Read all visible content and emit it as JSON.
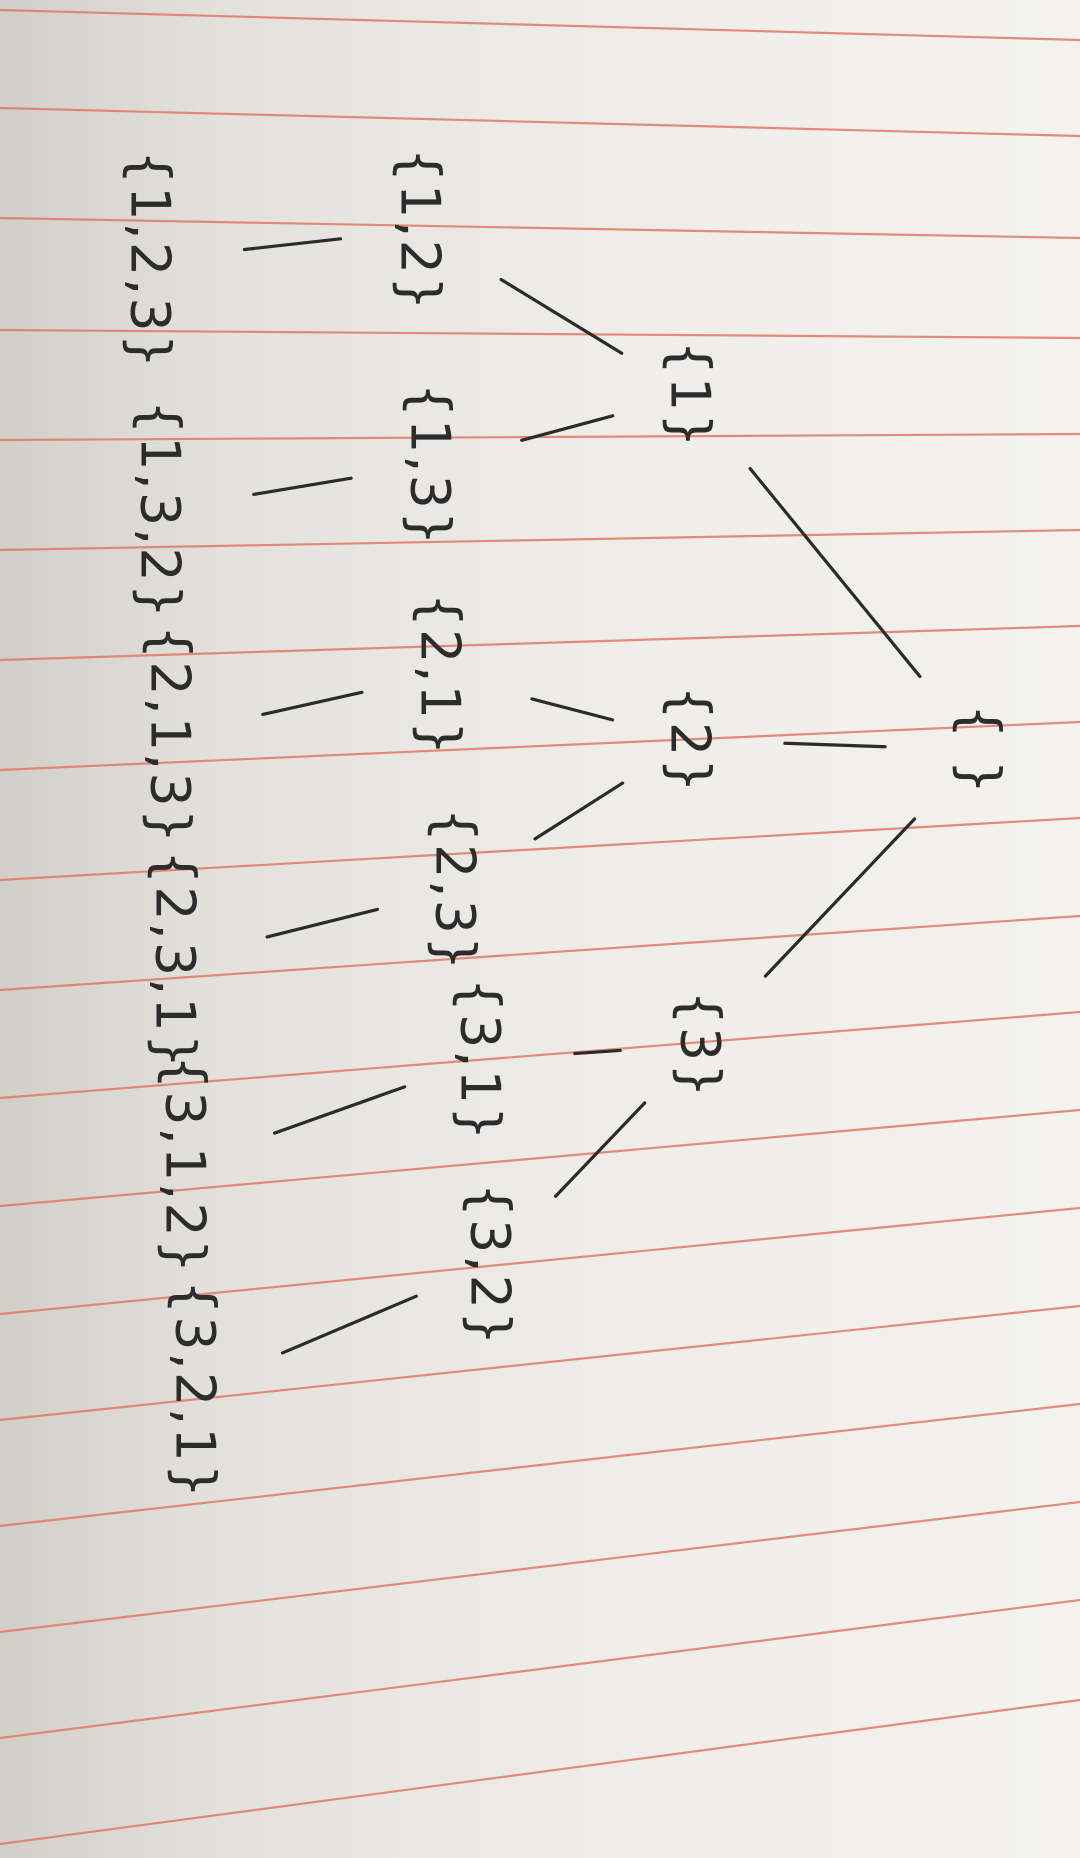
{
  "colors": {
    "ink": "#2c2c2c",
    "rule_line": "#e07a66",
    "paper": "#f0efeb"
  },
  "diagram": {
    "orientation": "rotated 90 degrees clockwise",
    "nodes": {
      "root": "{ }",
      "n1": "{1}",
      "n2": "{2}",
      "n3": "{3}",
      "n12": "{1,2}",
      "n13": "{1,3}",
      "n21": "{2,1}",
      "n23": "{2,3}",
      "n31": "{3,1}",
      "n32": "{3,2}",
      "n123": "{1,2,3}",
      "n132": "{1,3,2}",
      "n213": "{2,1,3}",
      "n231": "{2,3,1}",
      "n312": "{3,1,2}",
      "n321": "{3,2,1}"
    },
    "edges": [
      [
        "root",
        "n1"
      ],
      [
        "root",
        "n2"
      ],
      [
        "root",
        "n3"
      ],
      [
        "n1",
        "n12"
      ],
      [
        "n1",
        "n13"
      ],
      [
        "n2",
        "n21"
      ],
      [
        "n2",
        "n23"
      ],
      [
        "n3",
        "n31"
      ],
      [
        "n3",
        "n32"
      ],
      [
        "n12",
        "n123"
      ],
      [
        "n13",
        "n132"
      ],
      [
        "n21",
        "n213"
      ],
      [
        "n23",
        "n231"
      ],
      [
        "n31",
        "n312"
      ],
      [
        "n32",
        "n321"
      ]
    ]
  }
}
